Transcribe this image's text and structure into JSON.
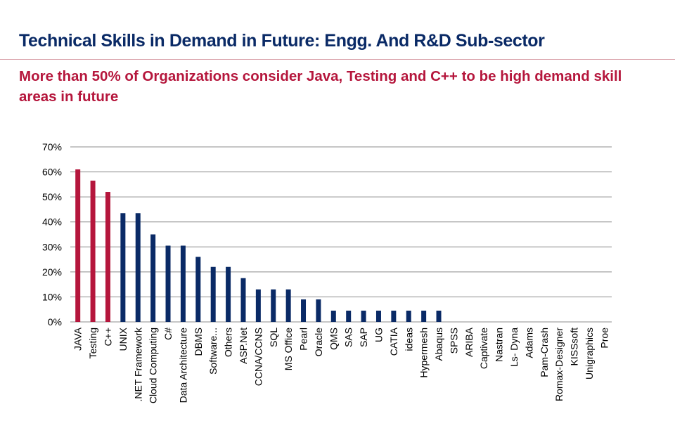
{
  "header": {
    "title": "Technical Skills in Demand in Future: Engg. And R&D Sub-sector",
    "subtitle": "More than 50%  of Organizations consider Java, Testing and C++ to be  high demand skill areas in future",
    "title_color": "#0a2a66",
    "subtitle_color": "#b5163c",
    "rule_color": "#d9a0a8"
  },
  "chart_data": {
    "type": "bar",
    "title": "",
    "xlabel": "",
    "ylabel": "",
    "ylim": [
      0,
      70
    ],
    "yticks": [
      0,
      10,
      20,
      30,
      40,
      50,
      60,
      70
    ],
    "ytick_labels": [
      "0%",
      "10%",
      "20%",
      "30%",
      "40%",
      "50%",
      "60%",
      "70%"
    ],
    "grid": true,
    "categories": [
      "JAVA",
      "Testing",
      "C++",
      "UNIX",
      ".NET Framework",
      "Cloud Computing",
      "C#",
      "Data Architecture",
      "DBMS",
      "Software...",
      "Others",
      "ASP.Net",
      "CCNA/CCNS",
      "SQL",
      "MS Office",
      "Pearl",
      "Oracle",
      "QMS",
      "SAS",
      "SAP",
      "UG",
      "CATIA",
      "ideas",
      "Hypermesh",
      "Abaqus",
      "SPSS",
      "ARIBA",
      "Captivate",
      "Nastran",
      "Ls- Dyna",
      "Adams",
      "Pam-Crash",
      "Romax-Designer",
      "KISSsoft",
      "Unigraphics",
      "Proe"
    ],
    "values": [
      61,
      56.5,
      52,
      43.5,
      43.5,
      35,
      30.5,
      30.5,
      26,
      22,
      22,
      17.5,
      13,
      13,
      13,
      9,
      9,
      4.5,
      4.5,
      4.5,
      4.5,
      4.5,
      4.5,
      4.5,
      4.5,
      0,
      0,
      0,
      0,
      0,
      0,
      0,
      0,
      0,
      0,
      0
    ],
    "highlight_count": 3,
    "colors": {
      "highlight": "#b5163c",
      "default": "#0a2a66",
      "grid": "#8c8c8c"
    }
  }
}
